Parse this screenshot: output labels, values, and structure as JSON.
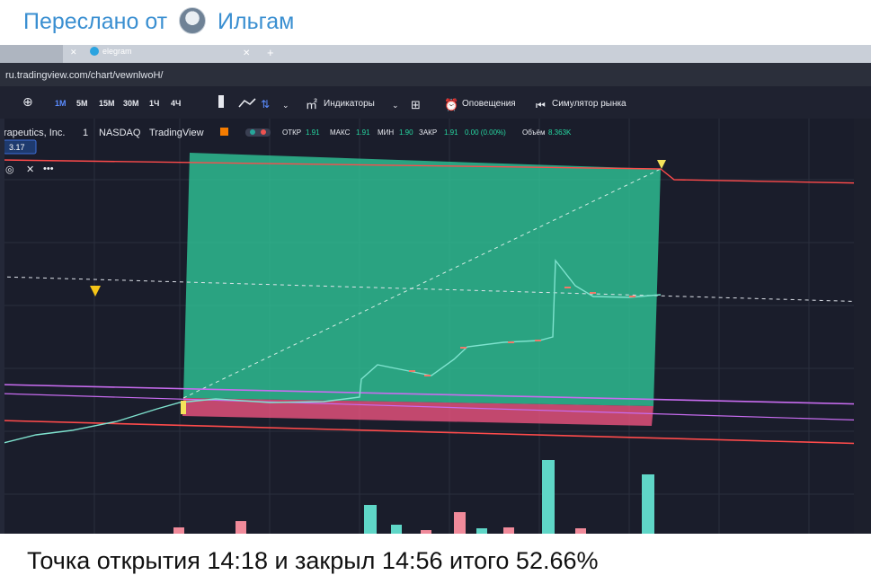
{
  "header": {
    "forwarded_prefix": "Переслано от",
    "sender_name": "Ильгам"
  },
  "browser": {
    "tab1_label": "elegram",
    "url": "ru.tradingview.com/chart/vewnlwoH/"
  },
  "toolbar": {
    "timeframes": [
      "1M",
      "5M",
      "15M",
      "30M",
      "1Ч",
      "4Ч"
    ],
    "indicators_label": "Индикаторы",
    "alerts_label": "Оповещения",
    "replay_label": "Симулятор рынка"
  },
  "symbol": {
    "name": "rapeutics, Inc.",
    "interval": "1",
    "exchange": "NASDAQ",
    "source": "TradingView",
    "price_badge": "3.17",
    "ohlc": {
      "open_label": "ОТКР",
      "open": "1.91",
      "high_label": "МАКС",
      "high": "1.91",
      "low_label": "МИН",
      "low": "1.90",
      "close_label": "ЗАКР",
      "close": "1.91",
      "change": "0.00 (0.00%)",
      "volume_label": "Объём",
      "volume": "8.363K"
    }
  },
  "caption": {
    "text": "Точка открытия 14:18 и закрыл 14:56 итого 52.66%"
  },
  "colors": {
    "header_blue": "#3a8fd1",
    "chart_bg": "#1a1d2b",
    "profit_zone": "#2fc99a",
    "stop_zone": "#e0507a",
    "up_candle": "#7fe3cf",
    "down_candle": "#f07a6a"
  }
}
